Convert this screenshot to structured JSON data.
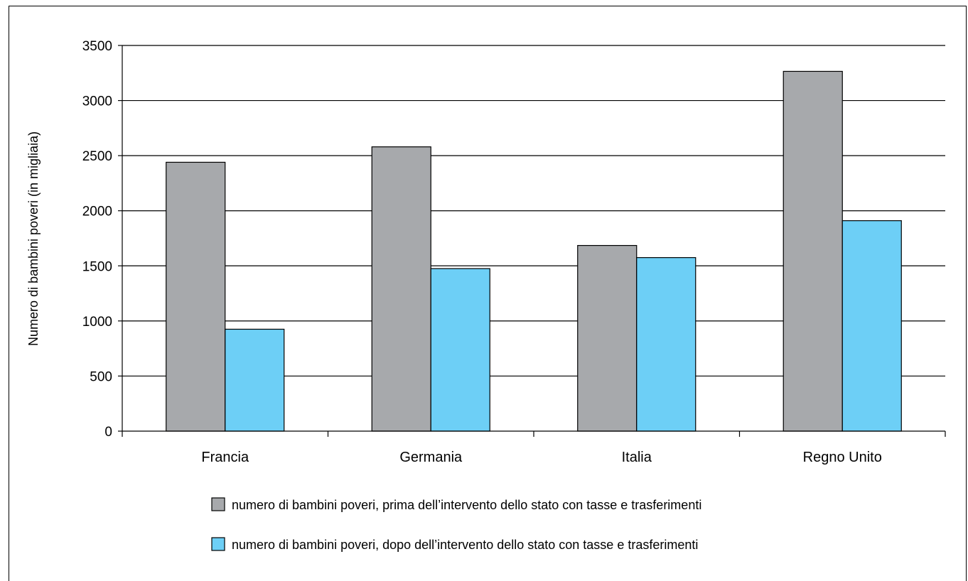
{
  "chart_data": {
    "type": "bar",
    "categories": [
      "Francia",
      "Germania",
      "Italia",
      "Regno Unito"
    ],
    "series": [
      {
        "name": "numero di bambini poveri, prima dell’intervento dello stato con tasse e trasferimenti",
        "values": [
          2440,
          2580,
          1685,
          3265
        ],
        "color": "#a7a9ac"
      },
      {
        "name": "numero di bambini poveri, dopo dell’intervento dello stato con tasse e trasferimenti",
        "values": [
          925,
          1475,
          1575,
          1910
        ],
        "color": "#6dcff6"
      }
    ],
    "ylabel": "Numero di bambini poveri (in migliaia)",
    "xlabel": "",
    "ylim": [
      0,
      3500
    ],
    "yticks": [
      0,
      500,
      1000,
      1500,
      2000,
      2500,
      3000,
      3500
    ],
    "grid": true,
    "legend_position": "bottom"
  }
}
